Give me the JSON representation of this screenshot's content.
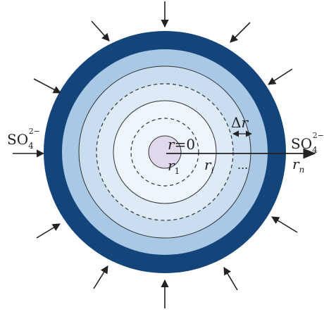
{
  "colors": {
    "outer_shell": "#13457a",
    "ring_2": "#a9c8e6",
    "ring_3": "#c8ddf0",
    "ring_4": "#deebf7",
    "inner_bg": "#eef5fc",
    "core": "#e2d8ec",
    "line": "#333333"
  },
  "labels": {
    "so4_left": {
      "base": "SO",
      "sub": "4",
      "sup": "2−"
    },
    "so4_right": {
      "base": "SO",
      "sub": "4",
      "sup": "2−"
    },
    "r0": {
      "var": "r",
      "rest": "=0"
    },
    "r1": {
      "var": "r",
      "sub": "1"
    },
    "ri": {
      "var": "r",
      "sub": "i"
    },
    "rn": {
      "var": "r",
      "sub": "n"
    },
    "delta_r": {
      "sym": "Δ",
      "var": "r"
    },
    "dots": "..."
  },
  "icons": {
    "inward_arrow": "arrow-icon",
    "radial_axis": "arrow-right-icon"
  }
}
